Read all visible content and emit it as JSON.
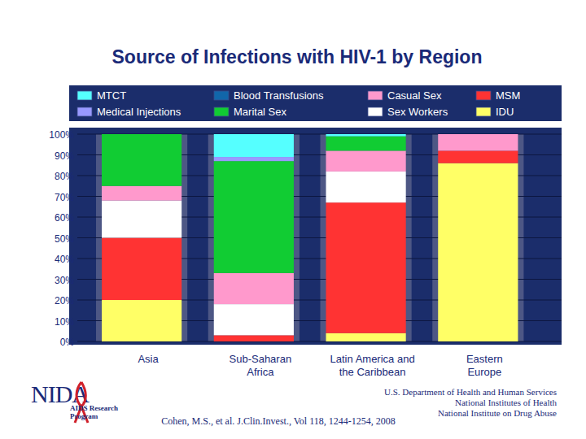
{
  "chart_data": {
    "type": "bar",
    "title": "Source of Infections with HIV-1 by Region",
    "categories": [
      "Asia",
      "Sub-Saharan\nAfrica",
      "Latin America and\nthe Caribbean",
      "Eastern\nEurope"
    ],
    "series": [
      {
        "name": "MTCT",
        "color": "#55ffff",
        "values": [
          0,
          11,
          1,
          0
        ]
      },
      {
        "name": "Medical Injections",
        "color": "#9999ff",
        "values": [
          0,
          2,
          0,
          0
        ]
      },
      {
        "name": "Blood Transfusions",
        "color": "#1166aa",
        "values": [
          0,
          0,
          0,
          0
        ]
      },
      {
        "name": "Marital Sex",
        "color": "#11cc33",
        "values": [
          25,
          54,
          7,
          0
        ]
      },
      {
        "name": "Casual Sex",
        "color": "#ff99cc",
        "values": [
          7,
          15,
          10,
          8
        ]
      },
      {
        "name": "Sex Workers",
        "color": "#ffffff",
        "values": [
          18,
          15,
          15,
          0
        ]
      },
      {
        "name": "MSM",
        "color": "#ff3333",
        "values": [
          30,
          3,
          63,
          6
        ]
      },
      {
        "name": "IDU",
        "color": "#ffff66",
        "values": [
          20,
          0,
          4,
          86
        ]
      }
    ],
    "ylim": [
      0,
      100
    ],
    "yticks": [
      {
        "value": 0,
        "label": "0%"
      },
      {
        "value": 10,
        "label": "10%"
      },
      {
        "value": 20,
        "label": "20%"
      },
      {
        "value": 30,
        "label": "30%"
      },
      {
        "value": 40,
        "label": "40%"
      },
      {
        "value": 50,
        "label": "50%"
      },
      {
        "value": 60,
        "label": "60%"
      },
      {
        "value": 70,
        "label": "70%"
      },
      {
        "value": 80,
        "label": "80%"
      },
      {
        "value": 90,
        "label": "90%"
      },
      {
        "value": 100,
        "label": "100%"
      }
    ],
    "stacked": true,
    "grid": true,
    "legend": "top"
  },
  "logo": {
    "name": "NIDA",
    "program": [
      "AIDS Research",
      "Program"
    ]
  },
  "footer": {
    "citation": "Cohen, M.S., et al. J.Clin.Invest., Vol 118, 1244-1254, 2008",
    "org": [
      "U.S. Department of Health and Human Services",
      "National Institutes of Health",
      "National Institute on Drug Abuse"
    ]
  }
}
